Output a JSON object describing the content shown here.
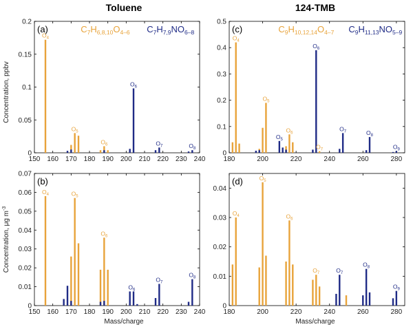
{
  "colors": {
    "orange": "#E8A33A",
    "blue": "#1F2B86",
    "axis": "#000000"
  },
  "column_titles": [
    "Toluene",
    "124-TMB"
  ],
  "xlabel": "Mass/charge",
  "ylabel_top": "Concentration, ppbv",
  "ylabel_bottom": "Concentration, μg m-3",
  "chart_data": [
    {
      "type": "bar",
      "panel": "(a)",
      "xlim": [
        150,
        240
      ],
      "ylim": [
        0,
        0.2
      ],
      "xticks": [
        "150",
        "160",
        "170",
        "180",
        "190",
        "200",
        "210",
        "220",
        "230",
        "240"
      ],
      "yticks": [
        "0",
        "0.05",
        "0.1",
        "0.15",
        "0.2"
      ],
      "legend": [
        {
          "main": "C",
          "parts": [
            [
              "7",
              "sub"
            ],
            [
              "H",
              ""
            ],
            [
              "6,8,10",
              "sub"
            ],
            [
              "O",
              ""
            ],
            [
              "4–6",
              "sub"
            ]
          ],
          "color": "orange"
        },
        {
          "main": "C",
          "parts": [
            [
              "7",
              "sub"
            ],
            [
              "H",
              ""
            ],
            [
              "7,9",
              "sub"
            ],
            [
              "NO",
              ""
            ],
            [
              "6–8",
              "sub"
            ]
          ],
          "color": "blue"
        }
      ],
      "series": [
        {
          "color": "orange",
          "x": [
            156,
            170,
            172,
            174,
            186,
            188,
            190
          ],
          "y": [
            0.172,
            0.012,
            0.03,
            0.026,
            0.004,
            0.01,
            0.004
          ]
        },
        {
          "color": "blue",
          "x": [
            168,
            170,
            188,
            202,
            204,
            216,
            218,
            234,
            236
          ],
          "y": [
            0.003,
            0.005,
            0.004,
            0.006,
            0.098,
            0.004,
            0.008,
            0.002,
            0.004
          ]
        }
      ],
      "annotations": [
        {
          "base": "O",
          "sub": "4",
          "x": 156,
          "y": 0.172,
          "color": "orange"
        },
        {
          "base": "O",
          "sub": "5",
          "x": 172,
          "y": 0.03,
          "color": "orange"
        },
        {
          "base": "O",
          "sub": "6",
          "x": 188,
          "y": 0.01,
          "color": "orange"
        },
        {
          "base": "O",
          "sub": "6",
          "x": 204,
          "y": 0.098,
          "color": "blue"
        },
        {
          "base": "O",
          "sub": "7",
          "x": 218,
          "y": 0.008,
          "color": "blue"
        },
        {
          "base": "O",
          "sub": "8",
          "x": 236,
          "y": 0.004,
          "color": "blue"
        }
      ]
    },
    {
      "type": "bar",
      "panel": "(c)",
      "xlim": [
        180,
        285
      ],
      "ylim": [
        0,
        0.5
      ],
      "xticks": [
        "180",
        "200",
        "220",
        "240",
        "260",
        "280"
      ],
      "yticks": [
        "0",
        "0.1",
        "0.2",
        "0.3",
        "0.4",
        "0.5"
      ],
      "legend": [
        {
          "main": "C",
          "parts": [
            [
              "9",
              "sub"
            ],
            [
              "H",
              ""
            ],
            [
              "10,12,14",
              "sub"
            ],
            [
              "O",
              ""
            ],
            [
              "4–7",
              "sub"
            ]
          ],
          "color": "orange"
        },
        {
          "main": "C",
          "parts": [
            [
              "9",
              "sub"
            ],
            [
              "H",
              ""
            ],
            [
              "11,13",
              "sub"
            ],
            [
              "NO",
              ""
            ],
            [
              "5–9",
              "sub"
            ]
          ],
          "color": "blue"
        }
      ],
      "series": [
        {
          "color": "orange",
          "x": [
            182,
            184,
            186,
            198,
            200,
            202,
            214,
            216,
            218,
            232,
            234
          ],
          "y": [
            0.04,
            0.42,
            0.035,
            0.015,
            0.095,
            0.19,
            0.025,
            0.07,
            0.04,
            0.012,
            0.006
          ]
        },
        {
          "color": "blue",
          "x": [
            196,
            198,
            210,
            212,
            214,
            230,
            232,
            246,
            248,
            262,
            264,
            278,
            280
          ],
          "y": [
            0.008,
            0.01,
            0.045,
            0.02,
            0.012,
            0.012,
            0.39,
            0.015,
            0.075,
            0.01,
            0.06,
            0.003,
            0.007
          ]
        }
      ],
      "annotations": [
        {
          "base": "O",
          "sub": "4",
          "x": 184,
          "y": 0.42,
          "color": "orange"
        },
        {
          "base": "O",
          "sub": "5",
          "x": 202,
          "y": 0.19,
          "color": "orange"
        },
        {
          "base": "O",
          "sub": "6",
          "x": 216,
          "y": 0.07,
          "color": "orange"
        },
        {
          "base": "O",
          "sub": "7",
          "x": 234,
          "y": 0.006,
          "color": "orange"
        },
        {
          "base": "O",
          "sub": "5",
          "x": 210,
          "y": 0.045,
          "color": "blue"
        },
        {
          "base": "O",
          "sub": "6",
          "x": 232,
          "y": 0.39,
          "color": "blue"
        },
        {
          "base": "O",
          "sub": "7",
          "x": 248,
          "y": 0.075,
          "color": "blue"
        },
        {
          "base": "O",
          "sub": "8",
          "x": 264,
          "y": 0.06,
          "color": "blue"
        },
        {
          "base": "O",
          "sub": "9",
          "x": 280,
          "y": 0.007,
          "color": "blue"
        }
      ]
    },
    {
      "type": "bar",
      "panel": "(b)",
      "xlim": [
        150,
        240
      ],
      "ylim": [
        0,
        0.07
      ],
      "xticks": [
        "150",
        "160",
        "170",
        "180",
        "190",
        "200",
        "210",
        "220",
        "230",
        "240"
      ],
      "yticks": [
        "0",
        "0.01",
        "0.02",
        "0.03",
        "0.04",
        "0.05",
        "0.06",
        "0.07"
      ],
      "series": [
        {
          "color": "orange",
          "x": [
            156,
            170,
            172,
            174,
            186,
            188,
            190
          ],
          "y": [
            0.058,
            0.026,
            0.057,
            0.033,
            0.019,
            0.036,
            0.019
          ]
        },
        {
          "color": "blue",
          "x": [
            166,
            168,
            170,
            186,
            188,
            202,
            204,
            206,
            216,
            218,
            234,
            236
          ],
          "y": [
            0.0035,
            0.0105,
            0.0025,
            0.002,
            0.0025,
            0.0075,
            0.0075,
            0.0008,
            0.004,
            0.0115,
            0.002,
            0.014
          ]
        }
      ],
      "annotations": [
        {
          "base": "O",
          "sub": "4",
          "x": 156,
          "y": 0.058,
          "color": "orange"
        },
        {
          "base": "O",
          "sub": "5",
          "x": 172,
          "y": 0.057,
          "color": "orange"
        },
        {
          "base": "O",
          "sub": "6",
          "x": 188,
          "y": 0.036,
          "color": "orange"
        },
        {
          "base": "O",
          "sub": "6",
          "x": 203,
          "y": 0.0075,
          "color": "blue"
        },
        {
          "base": "O",
          "sub": "7",
          "x": 218,
          "y": 0.0115,
          "color": "blue"
        },
        {
          "base": "O",
          "sub": "8",
          "x": 236,
          "y": 0.014,
          "color": "blue"
        }
      ]
    },
    {
      "type": "bar",
      "panel": "(d)",
      "xlim": [
        180,
        285
      ],
      "ylim": [
        0,
        0.045
      ],
      "xticks": [
        "180",
        "200",
        "220",
        "240",
        "260",
        "280"
      ],
      "yticks": [
        "0",
        "0.01",
        "0.02",
        "0.03",
        "0.04"
      ],
      "series": [
        {
          "color": "orange",
          "x": [
            182,
            184,
            198,
            200,
            202,
            214,
            216,
            218,
            230,
            232,
            234,
            250
          ],
          "y": [
            0.014,
            0.03,
            0.013,
            0.042,
            0.017,
            0.015,
            0.029,
            0.014,
            0.0088,
            0.0105,
            0.0065,
            0.0035
          ]
        },
        {
          "color": "blue",
          "x": [
            244,
            246,
            260,
            262,
            264,
            278,
            280
          ],
          "y": [
            0.004,
            0.0105,
            0.0035,
            0.0125,
            0.0045,
            0.0025,
            0.005
          ]
        }
      ],
      "annotations": [
        {
          "base": "O",
          "sub": "4",
          "x": 184,
          "y": 0.03,
          "color": "orange"
        },
        {
          "base": "O",
          "sub": "5",
          "x": 200,
          "y": 0.042,
          "color": "orange"
        },
        {
          "base": "O",
          "sub": "6",
          "x": 216,
          "y": 0.029,
          "color": "orange"
        },
        {
          "base": "O",
          "sub": "7",
          "x": 232,
          "y": 0.0105,
          "color": "orange"
        },
        {
          "base": "O",
          "sub": "7",
          "x": 246,
          "y": 0.0105,
          "color": "blue"
        },
        {
          "base": "O",
          "sub": "8",
          "x": 262,
          "y": 0.0125,
          "color": "blue"
        },
        {
          "base": "O",
          "sub": "9",
          "x": 280,
          "y": 0.005,
          "color": "blue"
        }
      ]
    }
  ]
}
